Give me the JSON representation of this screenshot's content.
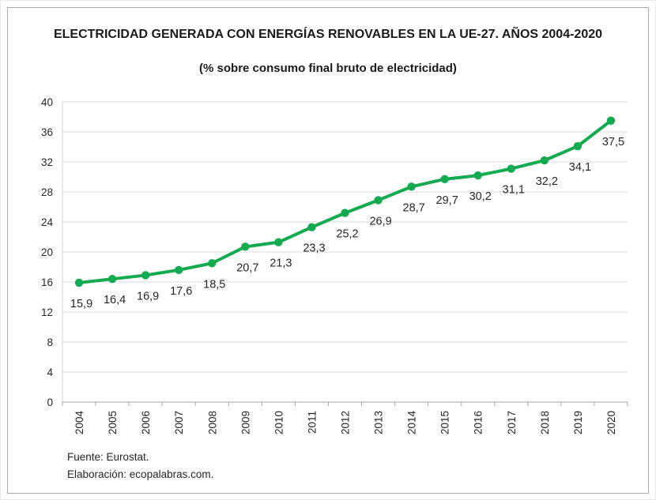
{
  "header": {
    "title": "ELECTRICIDAD GENERADA CON ENERGÍAS RENOVABLES EN LA UE-27. AÑOS 2004-2020",
    "subtitle": "(% sobre consumo final bruto de electricidad)"
  },
  "footer": {
    "source": "Fuente: Eurostat.",
    "credit": "Elaboración: ecopalabras.com."
  },
  "chart_data": {
    "type": "line",
    "title": "ELECTRICIDAD GENERADA CON ENERGÍAS RENOVABLES EN LA UE-27. AÑOS 2004-2020",
    "subtitle": "(% sobre consumo final bruto de electricidad)",
    "categories": [
      "2004",
      "2005",
      "2006",
      "2007",
      "2008",
      "2009",
      "2010",
      "2011",
      "2012",
      "2013",
      "2014",
      "2015",
      "2016",
      "2017",
      "2018",
      "2019",
      "2020"
    ],
    "values": [
      15.9,
      16.4,
      16.9,
      17.6,
      18.5,
      20.7,
      21.3,
      23.3,
      25.2,
      26.9,
      28.7,
      29.7,
      30.2,
      31.1,
      32.2,
      34.1,
      37.5
    ],
    "value_labels": [
      "15,9",
      "16,4",
      "16,9",
      "17,6",
      "18,5",
      "20,7",
      "21,3",
      "23,3",
      "25,2",
      "26,9",
      "28,7",
      "29,7",
      "30,2",
      "31,1",
      "32,2",
      "34,1",
      "37,5"
    ],
    "xlabel": "",
    "ylabel": "",
    "ylim": [
      0,
      40
    ],
    "ytick_step": 4,
    "grid": true,
    "legend": "none",
    "marker": "circle",
    "line_color": "#14AA50",
    "marker_color": "#14AA50",
    "gridline_color": "#D9D9D9",
    "axis_color": "#A6A6A6",
    "yaxis_line_color": "#D0D0D0",
    "tick_label_color": "#262626",
    "data_label_color": "#262626"
  }
}
